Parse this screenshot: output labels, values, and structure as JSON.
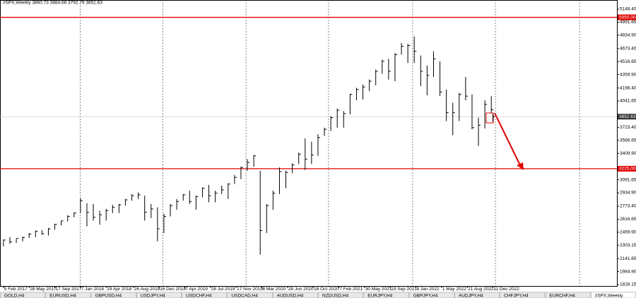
{
  "chart_data": {
    "type": "hlc",
    "header": "#SPX,Weekly 3860.73 3884.66 3792.79 3852.63",
    "x": [
      "2017-02-05",
      "2017-03-05",
      "2017-04-02",
      "2017-04-30",
      "2017-05-28",
      "2017-06-25",
      "2017-07-23",
      "2017-08-20",
      "2017-09-17",
      "2017-10-15",
      "2017-11-12",
      "2017-12-10",
      "2018-01-07",
      "2018-02-04",
      "2018-03-04",
      "2018-04-01",
      "2018-04-29",
      "2018-05-27",
      "2018-06-24",
      "2018-07-22",
      "2018-08-19",
      "2018-09-16",
      "2018-10-14",
      "2018-11-11",
      "2018-12-09",
      "2019-01-06",
      "2019-02-03",
      "2019-03-03",
      "2019-03-31",
      "2019-04-28",
      "2019-05-26",
      "2019-06-23",
      "2019-07-21",
      "2019-08-18",
      "2019-09-15",
      "2019-10-13",
      "2019-11-10",
      "2019-12-08",
      "2020-01-05",
      "2020-02-02",
      "2020-03-01",
      "2020-03-29",
      "2020-04-26",
      "2020-05-24",
      "2020-06-21",
      "2020-07-19",
      "2020-08-16",
      "2020-09-13",
      "2020-10-11",
      "2020-11-08",
      "2020-12-06",
      "2021-01-03",
      "2021-01-31",
      "2021-02-28",
      "2021-03-28",
      "2021-04-25",
      "2021-05-23",
      "2021-06-20",
      "2021-07-18",
      "2021-08-15",
      "2021-09-12",
      "2021-10-10",
      "2021-11-07",
      "2021-12-05",
      "2022-01-02",
      "2022-01-30",
      "2022-02-27",
      "2022-03-27",
      "2022-04-24",
      "2022-05-22",
      "2022-06-19",
      "2022-07-17",
      "2022-08-14",
      "2022-09-11",
      "2022-10-09",
      "2022-11-06",
      "2022-12-04",
      "2022-12-11"
    ],
    "high": [
      2370,
      2400,
      2380,
      2405,
      2450,
      2480,
      2485,
      2510,
      2560,
      2600,
      2665,
      2700,
      2870,
      2810,
      2800,
      2720,
      2740,
      2790,
      2800,
      2860,
      2920,
      2940,
      2900,
      2800,
      2760,
      2680,
      2800,
      2860,
      2920,
      2960,
      2900,
      3000,
      3030,
      2960,
      3020,
      3050,
      3150,
      3250,
      3340,
      3390,
      3200,
      2800,
      2960,
      3240,
      3200,
      3290,
      3420,
      3590,
      3550,
      3640,
      3720,
      3860,
      3950,
      3920,
      4130,
      4200,
      4240,
      4300,
      4420,
      4540,
      4550,
      4620,
      4740,
      4730,
      4820,
      4590,
      4470,
      4640,
      4520,
      4180,
      4020,
      4140,
      4330,
      4120,
      3840,
      4050,
      4100,
      3885
    ],
    "low": [
      2290,
      2320,
      2330,
      2350,
      2390,
      2400,
      2430,
      2420,
      2490,
      2540,
      2590,
      2640,
      2690,
      2530,
      2600,
      2550,
      2600,
      2690,
      2690,
      2780,
      2840,
      2860,
      2600,
      2630,
      2350,
      2450,
      2650,
      2730,
      2840,
      2800,
      2730,
      2880,
      2820,
      2820,
      2920,
      2860,
      3040,
      3100,
      3200,
      3250,
      2190,
      2450,
      2730,
      2920,
      2990,
      3170,
      3280,
      3210,
      3280,
      3380,
      3620,
      3680,
      3720,
      3720,
      3880,
      4050,
      4060,
      4160,
      4230,
      4370,
      4300,
      4280,
      4600,
      4500,
      4500,
      4220,
      4110,
      4330,
      4100,
      3800,
      3630,
      3800,
      4050,
      3700,
      3500,
      3710,
      3900,
      3793
    ],
    "close": [
      2365,
      2345,
      2385,
      2395,
      2435,
      2470,
      2440,
      2500,
      2555,
      2595,
      2650,
      2690,
      2840,
      2700,
      2640,
      2670,
      2720,
      2760,
      2790,
      2850,
      2900,
      2910,
      2700,
      2740,
      2500,
      2650,
      2780,
      2830,
      2910,
      2830,
      2890,
      2990,
      2900,
      2930,
      2970,
      3040,
      3120,
      3240,
      3300,
      3380,
      2480,
      2780,
      2930,
      3190,
      3180,
      3270,
      3400,
      3340,
      3390,
      3600,
      3700,
      3840,
      3930,
      3890,
      4120,
      4180,
      4210,
      4280,
      4400,
      4520,
      4400,
      4600,
      4700,
      4710,
      4640,
      4400,
      4350,
      4550,
      4150,
      3900,
      3900,
      4120,
      4100,
      3720,
      3750,
      4000,
      3935,
      3853
    ],
    "color": "#000000",
    "ylim": [
      1811,
      5259
    ],
    "xlim": [
      "2017-01-21",
      "2024-06-04"
    ],
    "yticks": [
      {
        "value": 5148.4,
        "label": "5148.40"
      },
      {
        "value": 4991.65,
        "label": "4991.65"
      },
      {
        "value": 4834.9,
        "label": "4834.90"
      },
      {
        "value": 4673.4,
        "label": "4673.40"
      },
      {
        "value": 4516.65,
        "label": "4516.65"
      },
      {
        "value": 4359.9,
        "label": "4359.90"
      },
      {
        "value": 4198.4,
        "label": "4198.40"
      },
      {
        "value": 4041.65,
        "label": "4041.65"
      },
      {
        "value": 3723.4,
        "label": "3723.40"
      },
      {
        "value": 3566.65,
        "label": "3566.65"
      },
      {
        "value": 3409.9,
        "label": "3409.90"
      },
      {
        "value": 3091.65,
        "label": "3091.65"
      },
      {
        "value": 2934.9,
        "label": "2934.90"
      },
      {
        "value": 2773.4,
        "label": "2773.40"
      },
      {
        "value": 2616.65,
        "label": "2616.65"
      },
      {
        "value": 2459.9,
        "label": "2459.90"
      },
      {
        "value": 2303.15,
        "label": "2303.15"
      },
      {
        "value": 2141.65,
        "label": "2141.65"
      },
      {
        "value": 1984.9,
        "label": "1984.90"
      },
      {
        "value": 1828.15,
        "label": "1828.15"
      }
    ],
    "xticks": [
      {
        "value": "2017-02-05",
        "label": "5 Feb 2017"
      },
      {
        "value": "2017-05-28",
        "label": "28 May 2017"
      },
      {
        "value": "2017-09-17",
        "label": "17 Sep 2017"
      },
      {
        "value": "2018-01-07",
        "label": "7 Jan 2018"
      },
      {
        "value": "2018-04-29",
        "label": "29 Apr 2018"
      },
      {
        "value": "2018-08-26",
        "label": "26 Aug 2018"
      },
      {
        "value": "2018-12-16",
        "label": "16 Dec 2018"
      },
      {
        "value": "2019-04-07",
        "label": "7 Apr 2019"
      },
      {
        "value": "2019-07-28",
        "label": "28 Jul 2019"
      },
      {
        "value": "2019-11-17",
        "label": "17 Nov 2019"
      },
      {
        "value": "2020-03-08",
        "label": "8 Mar 2020"
      },
      {
        "value": "2020-06-28",
        "label": "28 Jun 2020"
      },
      {
        "value": "2020-10-18",
        "label": "18 Oct 2020"
      },
      {
        "value": "2021-02-07",
        "label": "7 Feb 2021"
      },
      {
        "value": "2021-05-30",
        "label": "30 May 2021"
      },
      {
        "value": "2021-09-19",
        "label": "19 Sep 2021"
      },
      {
        "value": "2022-01-09",
        "label": "9 Jan 2022"
      },
      {
        "value": "2022-05-01",
        "label": "1 May 2022"
      },
      {
        "value": "2022-08-21",
        "label": "21 Aug 2022"
      },
      {
        "value": "2022-12-11",
        "label": "11 Dec 2022"
      }
    ],
    "xgrid": [
      "2018-01-06",
      "2019-01-01",
      "2019-12-30",
      "2020-12-24",
      "2021-12-26",
      "2022-12-22",
      "2023-12-24"
    ],
    "hlines": [
      {
        "value": 5050,
        "label": "5050.00",
        "color": "#e00000"
      },
      {
        "value": 3225,
        "label": "3225.00",
        "color": "#e00000"
      },
      {
        "value": 3852.63,
        "label": "3852.63",
        "color": "#c0c0c0"
      }
    ]
  },
  "tabs": [
    "GOLD,H4",
    "EURUSD,H4",
    "GBPUSD,H4",
    "USDJPY,H4",
    "USDCHF,H4",
    "USDCAD,H4",
    "AUDUSD,H4",
    "NZDUSD,H4",
    "EURJPY,H4",
    "GBPJPY,H4",
    "AUDJPY,H4",
    "CHFJPY,H4",
    "EURCHF,H4",
    "#SPX,Weekly"
  ]
}
